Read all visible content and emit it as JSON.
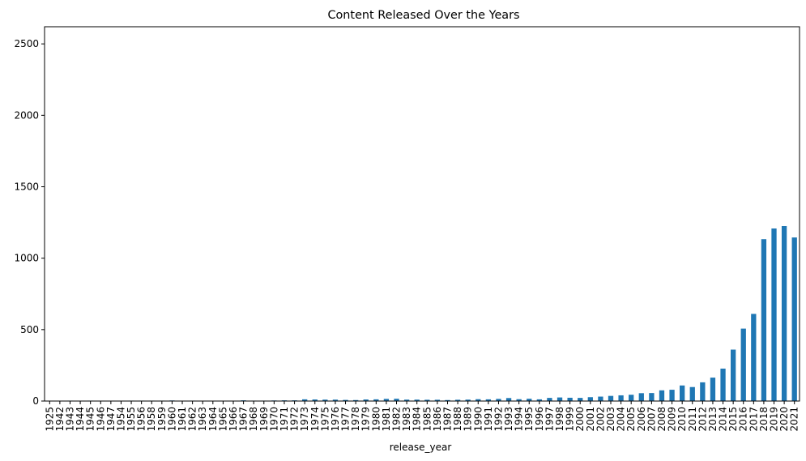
{
  "chart_data": {
    "type": "bar",
    "title": "Content Released Over the Years",
    "xlabel": "release_year",
    "ylabel": "",
    "ylim": [
      0,
      2620
    ],
    "yticks": [
      0,
      500,
      1000,
      1500,
      2000,
      2500
    ],
    "grid": false,
    "legend": "none",
    "bar_color": "#1f77b4",
    "categories": [
      "1925",
      "1942",
      "1943",
      "1944",
      "1945",
      "1946",
      "1947",
      "1954",
      "1955",
      "1956",
      "1958",
      "1959",
      "1960",
      "1961",
      "1962",
      "1963",
      "1964",
      "1965",
      "1966",
      "1967",
      "1968",
      "1969",
      "1970",
      "1971",
      "1972",
      "1973",
      "1974",
      "1975",
      "1976",
      "1977",
      "1978",
      "1979",
      "1980",
      "1981",
      "1982",
      "1983",
      "1984",
      "1985",
      "1986",
      "1987",
      "1988",
      "1989",
      "1990",
      "1991",
      "1992",
      "1993",
      "1994",
      "1995",
      "1996",
      "1997",
      "1998",
      "1999",
      "2000",
      "2001",
      "2002",
      "2003",
      "2004",
      "2005",
      "2006",
      "2007",
      "2008",
      "2009",
      "2010",
      "2011",
      "2012",
      "2013",
      "2014",
      "2015",
      "2016",
      "2017",
      "2018",
      "2019",
      "2020",
      "2021"
    ],
    "values": [
      1,
      2,
      3,
      2,
      3,
      2,
      1,
      2,
      3,
      3,
      3,
      3,
      4,
      1,
      3,
      2,
      2,
      2,
      1,
      5,
      3,
      3,
      4,
      5,
      5,
      12,
      11,
      10,
      10,
      8,
      7,
      11,
      12,
      15,
      16,
      10,
      10,
      9,
      9,
      7,
      9,
      10,
      13,
      12,
      15,
      21,
      13,
      16,
      12,
      22,
      25,
      23,
      22,
      27,
      31,
      36,
      40,
      44,
      55,
      56,
      75,
      79,
      109,
      98,
      131,
      164,
      227,
      360,
      507,
      610,
      1133,
      1208,
      1225,
      1145
    ]
  }
}
